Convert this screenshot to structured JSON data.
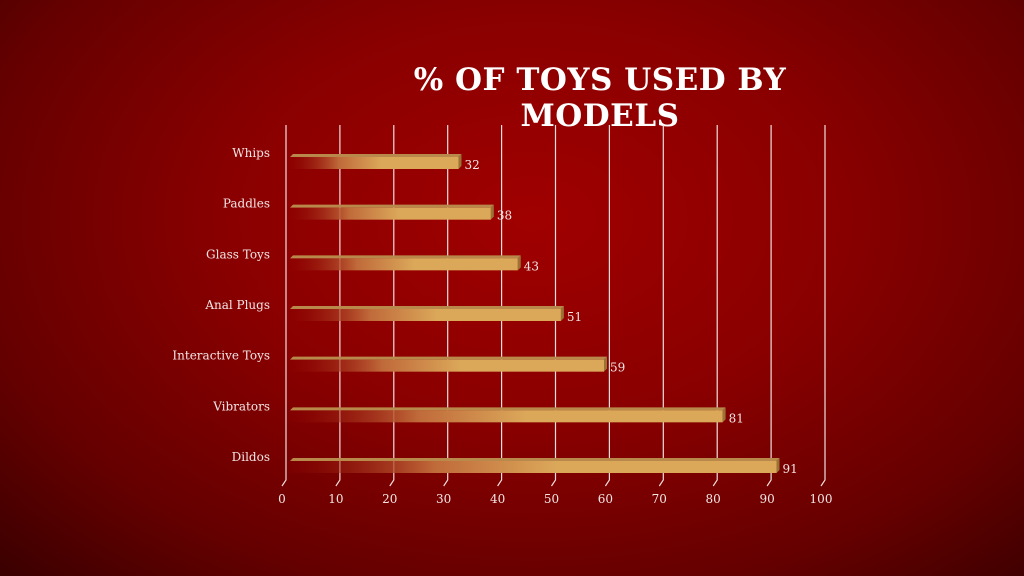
{
  "chart_data": {
    "type": "bar",
    "orientation": "horizontal",
    "title": "% OF TOYS USED BY MODELS",
    "categories": [
      "Whips",
      "Paddles",
      "Glass Toys",
      "Anal Plugs",
      "Interactive Toys",
      "Vibrators",
      "Dildos"
    ],
    "values": [
      32,
      38,
      43,
      51,
      59,
      81,
      91
    ],
    "xlim": [
      0,
      100
    ],
    "xticks": [
      0,
      10,
      20,
      30,
      40,
      50,
      60,
      70,
      80,
      90,
      100
    ],
    "grid": "vertical",
    "data_labels": true,
    "colors": {
      "bar": "#dba85a",
      "bar_dark": "#9a7335",
      "grid": "#f0dede",
      "text": "#f3e6e6"
    }
  }
}
